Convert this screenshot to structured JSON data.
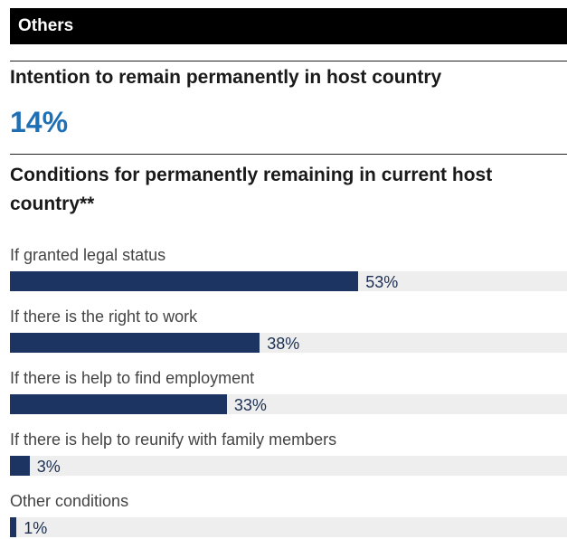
{
  "section": {
    "title": "Others"
  },
  "intention": {
    "heading": "Intention to remain permanently in host country",
    "value": "14%"
  },
  "conditions": {
    "heading": "Conditions for permanently remaining in current host country**"
  },
  "colors": {
    "bar": "#1c3461",
    "accent": "#1f6fb5",
    "track": "#eeeeee"
  },
  "chart_data": {
    "type": "bar",
    "orientation": "horizontal",
    "title": "Conditions for permanently remaining in current host country**",
    "categories": [
      "If granted legal status",
      "If there is the right to work",
      "If there is help to find employment",
      "If there is help to reunify with family members",
      "Other conditions"
    ],
    "values": [
      53,
      38,
      33,
      3,
      1
    ],
    "labels": [
      "53%",
      "38%",
      "33%",
      "3%",
      "1%"
    ],
    "unit": "%",
    "xlim": [
      0,
      100
    ],
    "grid": false
  }
}
